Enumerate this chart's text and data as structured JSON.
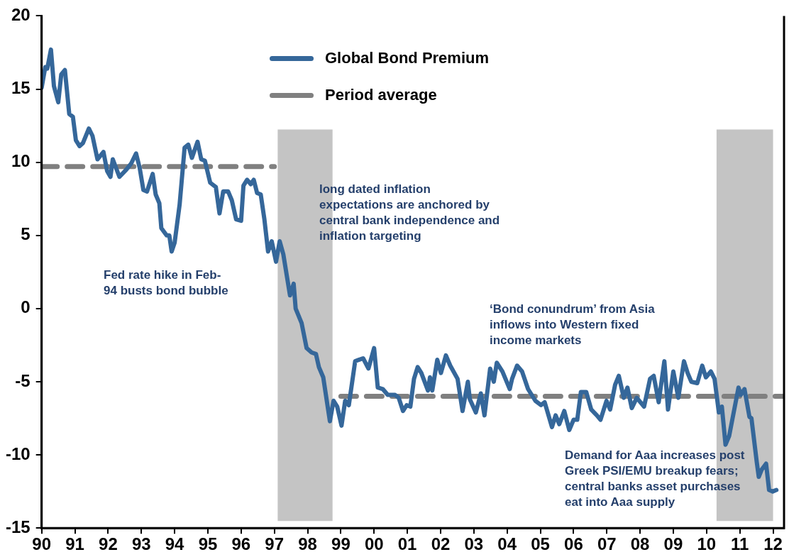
{
  "chart_data": {
    "type": "line",
    "xlim": [
      1990,
      2012.33
    ],
    "xticks": [
      {
        "value": 1990,
        "label": "90"
      },
      {
        "value": 1991,
        "label": "91"
      },
      {
        "value": 1992,
        "label": "92"
      },
      {
        "value": 1993,
        "label": "93"
      },
      {
        "value": 1994,
        "label": "94"
      },
      {
        "value": 1995,
        "label": "95"
      },
      {
        "value": 1996,
        "label": "96"
      },
      {
        "value": 1997,
        "label": "97"
      },
      {
        "value": 1998,
        "label": "98"
      },
      {
        "value": 1999,
        "label": "99"
      },
      {
        "value": 2000,
        "label": "00"
      },
      {
        "value": 2001,
        "label": "01"
      },
      {
        "value": 2002,
        "label": "02"
      },
      {
        "value": 2003,
        "label": "03"
      },
      {
        "value": 2004,
        "label": "04"
      },
      {
        "value": 2005,
        "label": "05"
      },
      {
        "value": 2006,
        "label": "06"
      },
      {
        "value": 2007,
        "label": "07"
      },
      {
        "value": 2008,
        "label": "08"
      },
      {
        "value": 2009,
        "label": "09"
      },
      {
        "value": 2010,
        "label": "10"
      },
      {
        "value": 2011,
        "label": "11"
      },
      {
        "value": 2012,
        "label": "12"
      }
    ],
    "ylim": [
      -15,
      20
    ],
    "yticks": [
      -15,
      -10,
      -5,
      0,
      5,
      10,
      15,
      20
    ],
    "grid": false,
    "legend": "top",
    "marker": "none",
    "series": [
      {
        "name": "Global Bond  Premium",
        "color": "#35679a",
        "line_style": "solid",
        "x": [
          1990,
          1990.11,
          1990.17,
          1990.28,
          1990.37,
          1990.5,
          1990.59,
          1990.7,
          1990.83,
          1990.94,
          1991.03,
          1991.14,
          1991.24,
          1991.42,
          1991.53,
          1991.68,
          1991.86,
          1991.97,
          1992.07,
          1992.14,
          1992.34,
          1992.55,
          1992.69,
          1992.84,
          1992.95,
          1993.06,
          1993.17,
          1993.34,
          1993.43,
          1993.54,
          1993.6,
          1993.76,
          1993.84,
          1993.91,
          1994,
          1994.15,
          1994.3,
          1994.41,
          1994.52,
          1994.69,
          1994.8,
          1994.91,
          1995.07,
          1995.24,
          1995.35,
          1995.46,
          1995.61,
          1995.72,
          1995.85,
          1996,
          1996.07,
          1996.18,
          1996.29,
          1996.38,
          1996.48,
          1996.59,
          1996.7,
          1996.81,
          1996.92,
          1997.05,
          1997.16,
          1997.27,
          1997.47,
          1997.58,
          1997.64,
          1997.82,
          1997.97,
          1998.12,
          1998.25,
          1998.34,
          1998.47,
          1998.67,
          1998.78,
          1998.89,
          1999.02,
          1999.13,
          1999.24,
          1999.43,
          1999.54,
          1999.67,
          1999.83,
          2000,
          2000.11,
          2000.26,
          2000.41,
          2000.63,
          2000.74,
          2000.87,
          2000.98,
          2001.09,
          2001.2,
          2001.31,
          2001.42,
          2001.62,
          2001.68,
          2001.75,
          2001.9,
          2002.01,
          2002.16,
          2002.29,
          2002.51,
          2002.66,
          2002.82,
          2002.88,
          2003.06,
          2003.21,
          2003.32,
          2003.49,
          2003.6,
          2003.69,
          2003.86,
          2004.08,
          2004.15,
          2004.3,
          2004.45,
          2004.63,
          2004.85,
          2005.02,
          2005.13,
          2005.35,
          2005.46,
          2005.57,
          2005.72,
          2005.87,
          2006,
          2006.11,
          2006.22,
          2006.38,
          2006.53,
          2006.7,
          2006.81,
          2006.99,
          2007.1,
          2007.25,
          2007.36,
          2007.51,
          2007.62,
          2007.75,
          2007.9,
          2008.12,
          2008.3,
          2008.41,
          2008.56,
          2008.73,
          2008.84,
          2009,
          2009.15,
          2009.32,
          2009.43,
          2009.54,
          2009.72,
          2009.87,
          2009.98,
          2010.13,
          2010.24,
          2010.37,
          2010.46,
          2010.57,
          2010.68,
          2010.96,
          2011.03,
          2011.14,
          2011.29,
          2011.35,
          2011.51,
          2011.57,
          2011.66,
          2011.79,
          2011.88,
          2011.99,
          2012.1
        ],
        "values": [
          15.1,
          16.5,
          16.4,
          17.7,
          15.2,
          14.1,
          16.0,
          16.3,
          13.3,
          13.1,
          11.5,
          11.1,
          11.3,
          12.3,
          11.8,
          10.2,
          10.7,
          9.4,
          9.0,
          10.2,
          9.0,
          9.5,
          9.9,
          10.6,
          9.6,
          8.1,
          8.0,
          9.2,
          7.8,
          7.2,
          5.5,
          5.0,
          5.0,
          3.9,
          4.5,
          7.1,
          11.0,
          11.2,
          10.3,
          11.4,
          10.2,
          10.1,
          8.6,
          8.3,
          6.5,
          8.0,
          8.0,
          7.4,
          6.1,
          6.0,
          8.4,
          8.8,
          8.5,
          8.8,
          7.9,
          7.8,
          6.1,
          3.9,
          4.6,
          3.2,
          4.6,
          3.7,
          0.9,
          1.7,
          0.0,
          -1.0,
          -2.7,
          -3.0,
          -3.1,
          -4.0,
          -4.7,
          -7.7,
          -6.3,
          -6.7,
          -8.0,
          -6.3,
          -6.6,
          -3.6,
          -3.5,
          -3.4,
          -4.1,
          -2.7,
          -5.4,
          -5.5,
          -5.9,
          -5.9,
          -6.1,
          -7.0,
          -6.6,
          -6.7,
          -4.8,
          -4.0,
          -4.4,
          -5.6,
          -4.7,
          -5.6,
          -3.5,
          -4.4,
          -3.2,
          -3.9,
          -4.8,
          -7.0,
          -5.0,
          -6.2,
          -7.1,
          -5.8,
          -7.3,
          -4.1,
          -5.0,
          -3.7,
          -4.3,
          -5.5,
          -4.8,
          -3.9,
          -4.3,
          -5.5,
          -6.3,
          -6.6,
          -6.4,
          -8.1,
          -7.3,
          -7.9,
          -7.0,
          -8.3,
          -7.6,
          -7.6,
          -5.7,
          -5.7,
          -6.9,
          -7.3,
          -7.6,
          -6.3,
          -6.9,
          -5.2,
          -4.6,
          -6.1,
          -5.4,
          -6.8,
          -6.1,
          -6.7,
          -4.8,
          -4.6,
          -6.4,
          -3.6,
          -6.9,
          -4.3,
          -6.1,
          -3.6,
          -4.4,
          -5.0,
          -5.1,
          -3.9,
          -4.7,
          -4.3,
          -4.8,
          -7.1,
          -6.7,
          -9.3,
          -8.7,
          -5.4,
          -5.9,
          -5.5,
          -7.4,
          -7.5,
          -10.5,
          -11.5,
          -11.0,
          -10.6,
          -12.4,
          -12.5,
          -12.4
        ]
      },
      {
        "name": "Period average",
        "color": "#808080",
        "line_style": "dashed",
        "x": [
          1990,
          1997,
          1998,
          1999,
          2012.33
        ],
        "values": [
          9.7,
          9.7,
          null,
          -6.0,
          -6.0
        ]
      }
    ],
    "bands": [
      {
        "axis": "x",
        "from": 1997.1,
        "to": 1998.75,
        "color": "#c4c4c4"
      },
      {
        "axis": "x",
        "from": 2010.3,
        "to": 2012.0,
        "color": "#c4c4c4"
      }
    ],
    "annotations": [
      "Fed rate hike in Feb-\n94 busts bond bubble",
      "long dated inflation\nexpectations are anchored by\ncentral bank independence and\ninflation targeting",
      "‘Bond conundrum’ from Asia\ninflows into Western fixed\nincome markets",
      "Demand for Aaa increases post\nGreek PSI/EMU breakup fears;\ncentral banks asset purchases\neat into Aaa supply"
    ]
  }
}
